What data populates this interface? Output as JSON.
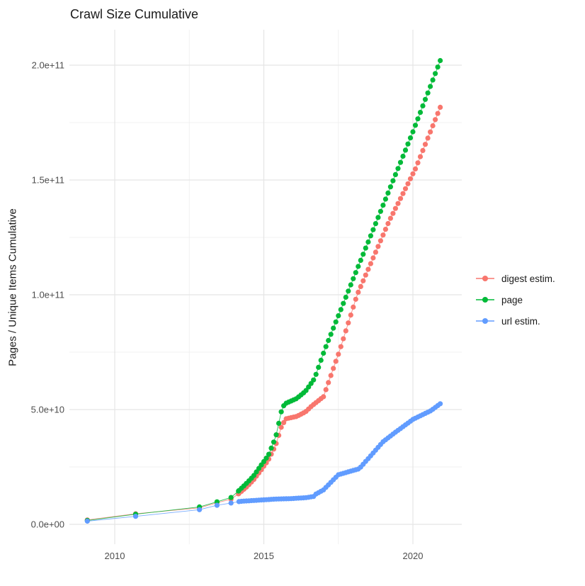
{
  "title": "Crawl Size Cumulative",
  "axes": {
    "y_title": "Pages / Unique Items Cumulative",
    "x_tick_labels": [
      "2010",
      "2015",
      "2020"
    ],
    "y_tick_labels": [
      "0.0e+00",
      "5.0e+10",
      "1.0e+11",
      "1.5e+11",
      "2.0e+11"
    ]
  },
  "legend": {
    "items": [
      {
        "label": "digest estim.",
        "color": "#F8766D"
      },
      {
        "label": "page",
        "color": "#00BA38"
      },
      {
        "label": "url estim.",
        "color": "#619CFF"
      }
    ]
  },
  "colors": {
    "grid_major": "#E5E5E5",
    "grid_minor": "#F0F0F0",
    "tick_text": "#4D4D4D",
    "title_text": "#1a1a1a"
  },
  "chart_data": {
    "type": "line",
    "title": "Crawl Size Cumulative",
    "xlabel": "",
    "ylabel": "Pages / Unique Items Cumulative",
    "x_ticks": [
      2010,
      2015,
      2020
    ],
    "x_minor_ticks": [
      2012.5,
      2017.5
    ],
    "y_ticks_e9": [
      0,
      50,
      100,
      150,
      200
    ],
    "y_minor_ticks_e9": [
      25,
      75,
      125,
      175
    ],
    "xlim": [
      2008.7,
      2021.7
    ],
    "ylim_e9": [
      -8,
      215
    ],
    "grid": true,
    "legend_position": "right",
    "value_unit": "1e9 items (billions), cumulative",
    "sampling_note": "sparse single crawls at 2009.08, 2010.70, 2012.84, 2013.43, 2013.90, then monthly points from 2014.17 to 2021.0; values interpolated from anchor readings below",
    "dense_start": 2014.1667,
    "dense_end": 2021.0,
    "step_years": 0.083333,
    "series": [
      {
        "name": "digest estim.",
        "color": "#F8766D",
        "anchors_year_value_e9": [
          [
            2009.08,
            1.9
          ],
          [
            2010.7,
            4.6
          ],
          [
            2012.84,
            7.2
          ],
          [
            2013.43,
            9.4
          ],
          [
            2013.9,
            11.0
          ],
          [
            2014.15,
            13.3
          ],
          [
            2014.4,
            16.0
          ],
          [
            2014.65,
            19.3
          ],
          [
            2014.9,
            23.5
          ],
          [
            2015.15,
            28.0
          ],
          [
            2015.4,
            34.5
          ],
          [
            2015.6,
            43.0
          ],
          [
            2015.75,
            46.0
          ],
          [
            2016.1,
            47.0
          ],
          [
            2016.4,
            49.0
          ],
          [
            2016.6,
            51.5
          ],
          [
            2017.0,
            55.6
          ],
          [
            2017.54,
            75.6
          ],
          [
            2018.13,
            100.0
          ],
          [
            2019.2,
            132.0
          ],
          [
            2020.09,
            155.0
          ],
          [
            2021.02,
            185.0
          ]
        ]
      },
      {
        "name": "page",
        "color": "#00BA38",
        "anchors_year_value_e9": [
          [
            2009.08,
            1.7
          ],
          [
            2010.7,
            4.4
          ],
          [
            2012.84,
            7.6
          ],
          [
            2013.43,
            9.8
          ],
          [
            2013.9,
            11.7
          ],
          [
            2014.15,
            14.5
          ],
          [
            2014.4,
            17.6
          ],
          [
            2014.65,
            21.0
          ],
          [
            2014.9,
            25.6
          ],
          [
            2015.15,
            30.0
          ],
          [
            2015.4,
            38.0
          ],
          [
            2015.6,
            50.0
          ],
          [
            2015.7,
            52.5
          ],
          [
            2016.1,
            54.8
          ],
          [
            2016.4,
            58.0
          ],
          [
            2016.7,
            63.5
          ],
          [
            2017.04,
            76.0
          ],
          [
            2018.0,
            107.0
          ],
          [
            2019.0,
            139.0
          ],
          [
            2020.0,
            171.0
          ],
          [
            2021.02,
            205.5
          ]
        ]
      },
      {
        "name": "url estim.",
        "color": "#619CFF",
        "anchors_year_value_e9": [
          [
            2009.08,
            1.4
          ],
          [
            2010.7,
            3.5
          ],
          [
            2012.84,
            6.4
          ],
          [
            2013.43,
            8.3
          ],
          [
            2013.9,
            9.3
          ],
          [
            2014.2,
            10.0
          ],
          [
            2014.9,
            10.6
          ],
          [
            2015.4,
            11.0
          ],
          [
            2015.9,
            11.2
          ],
          [
            2016.4,
            11.6
          ],
          [
            2016.7,
            12.2
          ],
          [
            2016.75,
            13.2
          ],
          [
            2017.0,
            15.0
          ],
          [
            2017.5,
            21.6
          ],
          [
            2017.95,
            23.3
          ],
          [
            2018.2,
            24.2
          ],
          [
            2019.0,
            36.0
          ],
          [
            2019.4,
            40.0
          ],
          [
            2020.0,
            45.7
          ],
          [
            2020.6,
            49.5
          ],
          [
            2021.02,
            53.5
          ]
        ]
      }
    ]
  }
}
